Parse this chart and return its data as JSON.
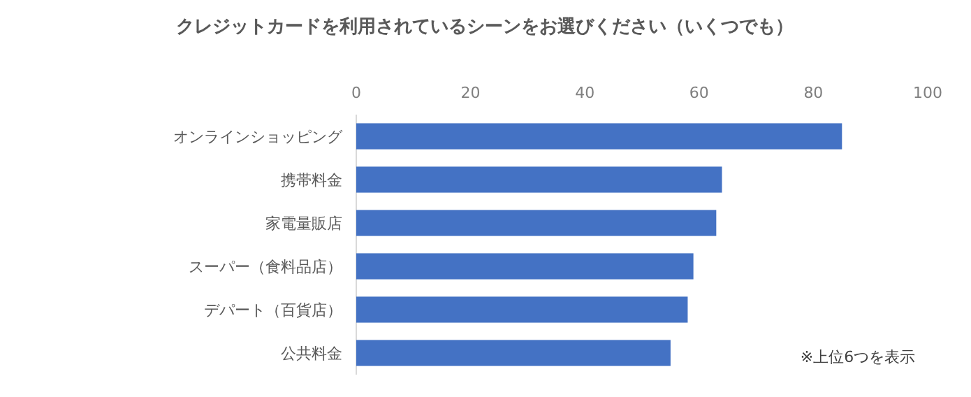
{
  "chart_data": {
    "type": "bar",
    "orientation": "horizontal",
    "title": "クレジットカードを利用されているシーンをお選びください（いくつでも）",
    "categories": [
      "オンラインショッピング",
      "携帯料金",
      "家電量販店",
      "スーパー（食料品店）",
      "デパート（百貨店）",
      "公共料金"
    ],
    "values": [
      85,
      64,
      63,
      59,
      58,
      55
    ],
    "color": "#4472c4",
    "xlim": [
      0,
      100
    ],
    "xticks": [
      0,
      20,
      40,
      60,
      80,
      100
    ],
    "grid": false,
    "annotations": [
      "※上位6つを表示"
    ]
  }
}
